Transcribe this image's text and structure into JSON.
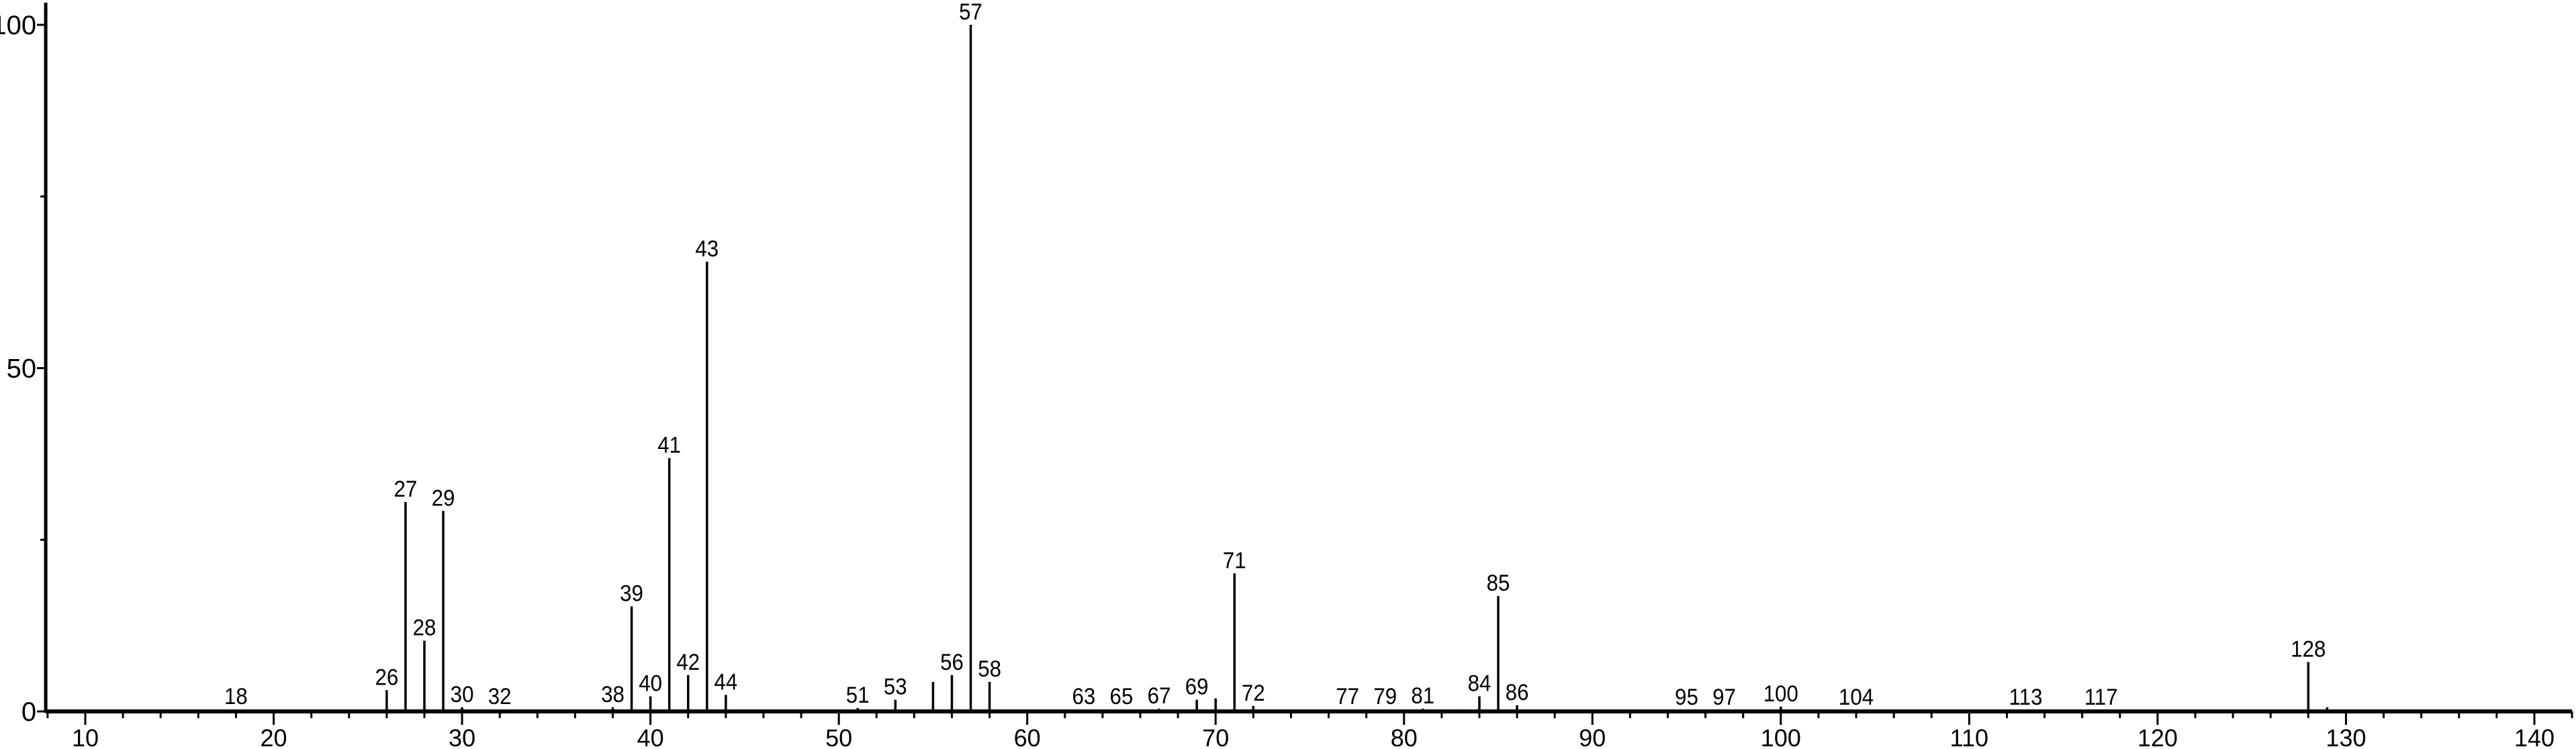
{
  "chart_data": {
    "type": "bar",
    "title": "",
    "xlabel": "",
    "ylabel": "",
    "xlim": [
      7.9,
      142
    ],
    "ylim": [
      0,
      100
    ],
    "grid": false,
    "x_ticks": [
      10,
      20,
      30,
      40,
      50,
      60,
      70,
      80,
      90,
      100,
      110,
      120,
      130,
      140
    ],
    "y_ticks": [
      0,
      50,
      100
    ],
    "bar_color": "#000000",
    "peaks": [
      {
        "mz": 18,
        "intensity": 0.3,
        "label": "18"
      },
      {
        "mz": 19,
        "intensity": 0.2
      },
      {
        "mz": 25,
        "intensity": 0.3
      },
      {
        "mz": 26,
        "intensity": 3.1,
        "label": "26"
      },
      {
        "mz": 27,
        "intensity": 30.5,
        "label": "27"
      },
      {
        "mz": 28,
        "intensity": 10.3,
        "label": "28"
      },
      {
        "mz": 29,
        "intensity": 29.2,
        "label": "29"
      },
      {
        "mz": 30,
        "intensity": 0.6,
        "label": "30"
      },
      {
        "mz": 31,
        "intensity": 0.2
      },
      {
        "mz": 32,
        "intensity": 0.3,
        "label": "32"
      },
      {
        "mz": 37,
        "intensity": 0.2
      },
      {
        "mz": 38,
        "intensity": 0.6,
        "label": "38"
      },
      {
        "mz": 39,
        "intensity": 15.3,
        "label": "39"
      },
      {
        "mz": 40,
        "intensity": 2.2,
        "label": "40"
      },
      {
        "mz": 41,
        "intensity": 36.9,
        "label": "41"
      },
      {
        "mz": 42,
        "intensity": 5.3,
        "label": "42"
      },
      {
        "mz": 43,
        "intensity": 65.5,
        "label": "43"
      },
      {
        "mz": 44,
        "intensity": 2.4,
        "label": "44"
      },
      {
        "mz": 45,
        "intensity": 0.2
      },
      {
        "mz": 49,
        "intensity": 0.2
      },
      {
        "mz": 51,
        "intensity": 0.5,
        "label": "51"
      },
      {
        "mz": 52,
        "intensity": 0.2
      },
      {
        "mz": 53,
        "intensity": 1.7,
        "label": "53"
      },
      {
        "mz": 54,
        "intensity": 0.3
      },
      {
        "mz": 55,
        "intensity": 4.3
      },
      {
        "mz": 56,
        "intensity": 5.3,
        "label": "56"
      },
      {
        "mz": 57,
        "intensity": 100,
        "label": "57"
      },
      {
        "mz": 58,
        "intensity": 4.3,
        "label": "58"
      },
      {
        "mz": 59,
        "intensity": 0.2
      },
      {
        "mz": 63,
        "intensity": 0.3,
        "label": "63"
      },
      {
        "mz": 65,
        "intensity": 0.3,
        "label": "65"
      },
      {
        "mz": 67,
        "intensity": 0.4,
        "label": "67"
      },
      {
        "mz": 69,
        "intensity": 1.7,
        "label": "69"
      },
      {
        "mz": 70,
        "intensity": 1.9
      },
      {
        "mz": 71,
        "intensity": 20.1,
        "label": "71"
      },
      {
        "mz": 72,
        "intensity": 0.8,
        "label": "72"
      },
      {
        "mz": 73,
        "intensity": 0.2
      },
      {
        "mz": 77,
        "intensity": 0.3,
        "label": "77"
      },
      {
        "mz": 79,
        "intensity": 0.3,
        "label": "79"
      },
      {
        "mz": 81,
        "intensity": 0.4,
        "label": "81"
      },
      {
        "mz": 83,
        "intensity": 0.3
      },
      {
        "mz": 84,
        "intensity": 2.2,
        "label": "84"
      },
      {
        "mz": 85,
        "intensity": 16.8,
        "label": "85"
      },
      {
        "mz": 86,
        "intensity": 0.9,
        "label": "86"
      },
      {
        "mz": 87,
        "intensity": 0.2
      },
      {
        "mz": 95,
        "intensity": 0.2,
        "label": "95"
      },
      {
        "mz": 97,
        "intensity": 0.2,
        "label": "97"
      },
      {
        "mz": 99,
        "intensity": 0.3
      },
      {
        "mz": 100,
        "intensity": 0.7,
        "label": "100"
      },
      {
        "mz": 101,
        "intensity": 0.2
      },
      {
        "mz": 104,
        "intensity": 0.2,
        "label": "104"
      },
      {
        "mz": 105,
        "intensity": 0.2
      },
      {
        "mz": 113,
        "intensity": 0.2,
        "label": "113"
      },
      {
        "mz": 115,
        "intensity": 0.2
      },
      {
        "mz": 117,
        "intensity": 0.2,
        "label": "117"
      },
      {
        "mz": 118,
        "intensity": 0.2
      },
      {
        "mz": 128,
        "intensity": 7.2,
        "label": "128"
      },
      {
        "mz": 129,
        "intensity": 0.6
      }
    ]
  }
}
